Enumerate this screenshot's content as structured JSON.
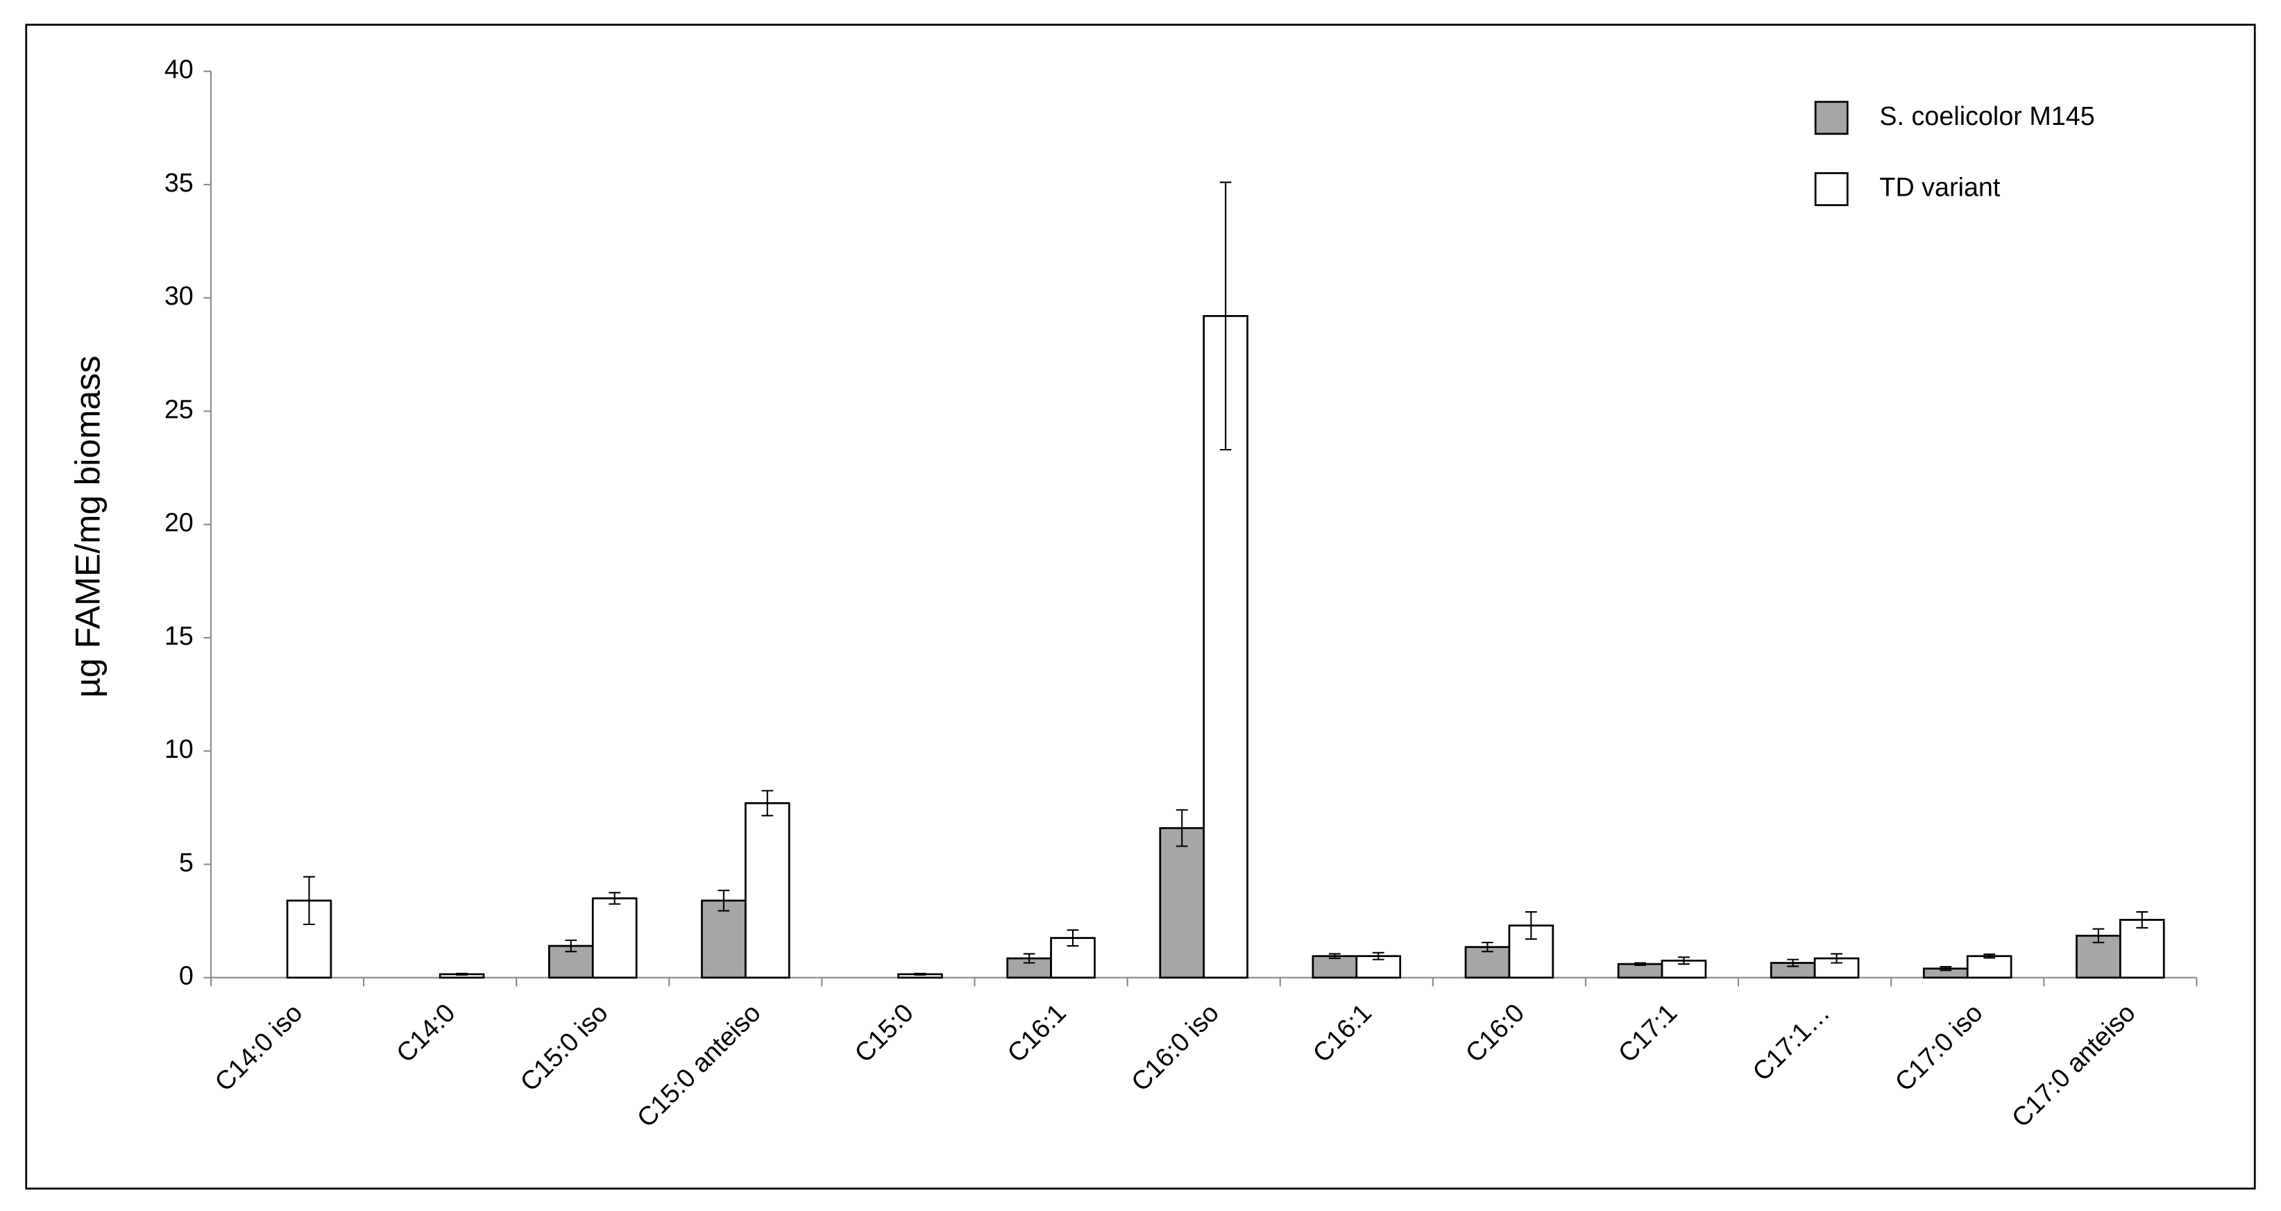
{
  "chart_data": {
    "type": "bar",
    "y_label": "µg FAME/mg biomass",
    "categories": [
      "C14:0 iso",
      "C14:0",
      "C15:0 iso",
      "C15:0 anteiso",
      "C15:0",
      "C16:1",
      "C16:0 iso",
      "C16:1",
      "C16:0",
      "C17:1",
      "C17:1…",
      "C17:0 iso",
      "C17:0 anteiso"
    ],
    "series": [
      {
        "name": "S. coelicolor M145",
        "color": "#a6a6a6",
        "values": [
          null,
          null,
          1.4,
          3.4,
          null,
          0.85,
          6.6,
          0.95,
          1.35,
          0.6,
          0.65,
          0.4,
          1.85
        ],
        "errors": [
          null,
          null,
          0.25,
          0.45,
          null,
          0.2,
          0.8,
          0.1,
          0.2,
          0.05,
          0.15,
          0.08,
          0.3
        ]
      },
      {
        "name": "TD variant",
        "color": "#ffffff",
        "values": [
          3.4,
          0.15,
          3.5,
          7.7,
          0.15,
          1.75,
          29.2,
          0.95,
          2.3,
          0.75,
          0.85,
          0.95,
          2.55
        ],
        "errors": [
          1.05,
          0.03,
          0.25,
          0.55,
          0.03,
          0.35,
          5.9,
          0.15,
          0.6,
          0.15,
          0.2,
          0.08,
          0.35
        ]
      }
    ],
    "ylim": [
      0,
      40
    ],
    "yticks": [
      0,
      5,
      10,
      15,
      20,
      25,
      30,
      35,
      40
    ],
    "grid": false,
    "legend": "upper right"
  }
}
